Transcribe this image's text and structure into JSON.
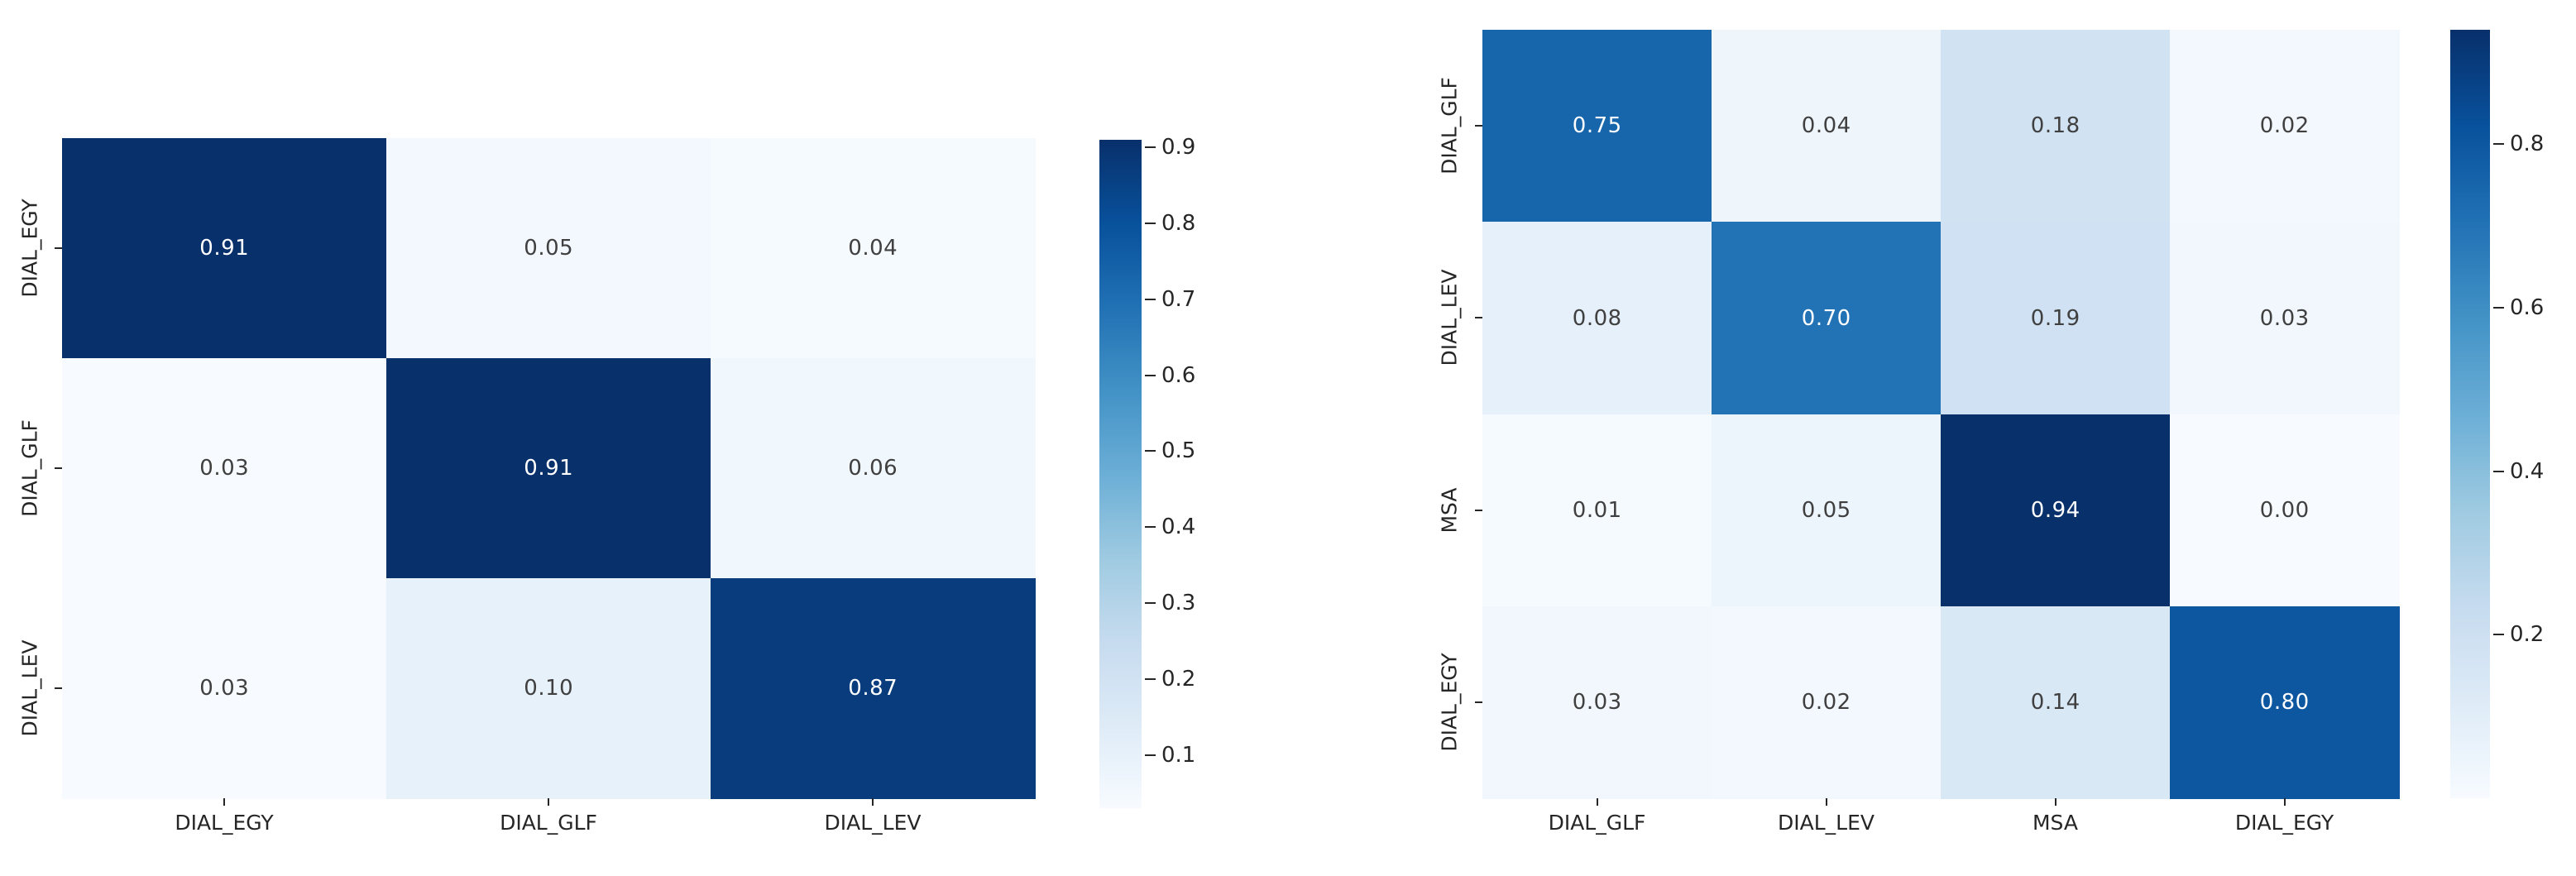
{
  "page": {
    "background": "#ffffff"
  },
  "colors": {
    "colormap_name": "Blues",
    "blues_stops": [
      "#f7fbff",
      "#deebf7",
      "#c6dbef",
      "#9ecae1",
      "#6baed6",
      "#4292c6",
      "#2171b5",
      "#08519c",
      "#08306b"
    ],
    "cell_text_dark": "#404040",
    "cell_text_light": "#ffffff",
    "axis_text": "#262626",
    "tick_mark": "#262626"
  },
  "chart_data": [
    {
      "type": "heatmap",
      "name": "confusion-matrix-3class",
      "title": "",
      "x_categories": [
        "DIAL_EGY",
        "DIAL_GLF",
        "DIAL_LEV"
      ],
      "y_categories": [
        "DIAL_EGY",
        "DIAL_GLF",
        "DIAL_LEV"
      ],
      "values": [
        [
          0.91,
          0.05,
          0.04
        ],
        [
          0.03,
          0.91,
          0.06
        ],
        [
          0.03,
          0.1,
          0.87
        ]
      ],
      "value_decimals": 2,
      "vmin": 0.03,
      "vmax": 0.91,
      "colorbar_ticks": [
        0.9,
        0.8,
        0.7,
        0.6,
        0.5,
        0.4,
        0.3,
        0.2,
        0.1
      ],
      "colorbar_tick_decimals": 1,
      "legend_position": "right",
      "grid": false
    },
    {
      "type": "heatmap",
      "name": "confusion-matrix-4class",
      "title": "",
      "x_categories": [
        "DIAL_GLF",
        "DIAL_LEV",
        "MSA",
        "DIAL_EGY"
      ],
      "y_categories": [
        "DIAL_GLF",
        "DIAL_LEV",
        "MSA",
        "DIAL_EGY"
      ],
      "values": [
        [
          0.75,
          0.04,
          0.18,
          0.02
        ],
        [
          0.08,
          0.7,
          0.19,
          0.03
        ],
        [
          0.01,
          0.05,
          0.94,
          0.0
        ],
        [
          0.03,
          0.02,
          0.14,
          0.8
        ]
      ],
      "value_decimals": 2,
      "vmin": 0.0,
      "vmax": 0.94,
      "colorbar_ticks": [
        0.8,
        0.6,
        0.4,
        0.2
      ],
      "colorbar_tick_decimals": 1,
      "legend_position": "right",
      "grid": false
    }
  ]
}
